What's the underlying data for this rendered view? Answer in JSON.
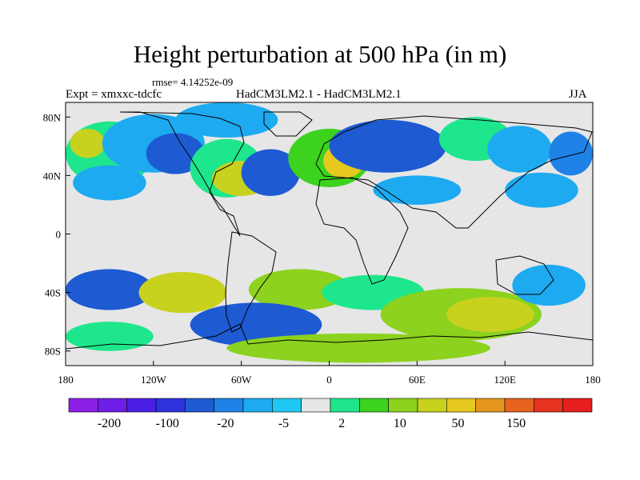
{
  "title": "Height perturbation at 500 hPa (in m)",
  "rmse_label": "rmse= 4.14252e-09",
  "expt_label": "Expt = xmxxc-tdcfc",
  "model_label": "HadCM3LM2.1 - HadCM3LM2.1",
  "season_label": "JJA",
  "x_ticks": [
    "180",
    "120W",
    "60W",
    "0",
    "60E",
    "120E",
    "180"
  ],
  "y_ticks": [
    "80N",
    "40N",
    "0",
    "40S",
    "80S"
  ],
  "colorbar": {
    "colors": [
      "#8c1ee6",
      "#6e1ee6",
      "#4b1ee6",
      "#2d32dc",
      "#1e5ad2",
      "#1e82e6",
      "#1eaaf0",
      "#1ec8f0",
      "#e6e6e6",
      "#1ee68c",
      "#3cd21e",
      "#8cd21e",
      "#c8d21e",
      "#e6c81e",
      "#e6961e",
      "#e6641e",
      "#e6321e",
      "#e61e1e"
    ],
    "labels": [
      "-200",
      "-100",
      "-20",
      "-5",
      "2",
      "10",
      "50",
      "150"
    ]
  },
  "map_data": {
    "projection": "cylindrical-equidistant",
    "lon_range": [
      -180,
      180
    ],
    "lat_range": [
      -90,
      90
    ],
    "background_color": "#e6e6e6",
    "blobs": [
      {
        "lon": -150,
        "lat": 55,
        "rx": 30,
        "ry": 22,
        "color": "#1ee68c"
      },
      {
        "lon": -165,
        "lat": 62,
        "rx": 12,
        "ry": 10,
        "color": "#c8d21e"
      },
      {
        "lon": -120,
        "lat": 62,
        "rx": 35,
        "ry": 20,
        "color": "#1eaaf0"
      },
      {
        "lon": -105,
        "lat": 55,
        "rx": 20,
        "ry": 14,
        "color": "#1e5ad2"
      },
      {
        "lon": -150,
        "lat": 35,
        "rx": 25,
        "ry": 12,
        "color": "#1eaaf0"
      },
      {
        "lon": -70,
        "lat": 45,
        "rx": 25,
        "ry": 20,
        "color": "#1ee68c"
      },
      {
        "lon": -60,
        "lat": 38,
        "rx": 20,
        "ry": 12,
        "color": "#c8d21e"
      },
      {
        "lon": -40,
        "lat": 42,
        "rx": 20,
        "ry": 16,
        "color": "#1e5ad2"
      },
      {
        "lon": -70,
        "lat": 78,
        "rx": 35,
        "ry": 12,
        "color": "#1eaaf0"
      },
      {
        "lon": 0,
        "lat": 52,
        "rx": 28,
        "ry": 20,
        "color": "#3cd21e"
      },
      {
        "lon": 10,
        "lat": 50,
        "rx": 14,
        "ry": 12,
        "color": "#e6c81e"
      },
      {
        "lon": 40,
        "lat": 60,
        "rx": 40,
        "ry": 18,
        "color": "#1e5ad2"
      },
      {
        "lon": 100,
        "lat": 65,
        "rx": 25,
        "ry": 15,
        "color": "#1ee68c"
      },
      {
        "lon": 130,
        "lat": 58,
        "rx": 22,
        "ry": 16,
        "color": "#1eaaf0"
      },
      {
        "lon": 165,
        "lat": 55,
        "rx": 15,
        "ry": 15,
        "color": "#1e82e6"
      },
      {
        "lon": 60,
        "lat": 30,
        "rx": 30,
        "ry": 10,
        "color": "#1eaaf0"
      },
      {
        "lon": 145,
        "lat": 30,
        "rx": 25,
        "ry": 12,
        "color": "#1eaaf0"
      },
      {
        "lon": -150,
        "lat": -38,
        "rx": 30,
        "ry": 14,
        "color": "#1e5ad2"
      },
      {
        "lon": -100,
        "lat": -40,
        "rx": 30,
        "ry": 14,
        "color": "#c8d21e"
      },
      {
        "lon": -20,
        "lat": -38,
        "rx": 35,
        "ry": 14,
        "color": "#8cd21e"
      },
      {
        "lon": -50,
        "lat": -62,
        "rx": 45,
        "ry": 15,
        "color": "#1e5ad2"
      },
      {
        "lon": 30,
        "lat": -40,
        "rx": 35,
        "ry": 12,
        "color": "#1ee68c"
      },
      {
        "lon": 90,
        "lat": -55,
        "rx": 55,
        "ry": 18,
        "color": "#8cd21e"
      },
      {
        "lon": 110,
        "lat": -55,
        "rx": 30,
        "ry": 12,
        "color": "#c8d21e"
      },
      {
        "lon": 150,
        "lat": -35,
        "rx": 25,
        "ry": 14,
        "color": "#1eaaf0"
      },
      {
        "lon": 20,
        "lat": -78,
        "rx": 90,
        "ry": 10,
        "color": "#8cd21e"
      },
      {
        "lon": -150,
        "lat": -70,
        "rx": 30,
        "ry": 10,
        "color": "#1ee68c"
      }
    ]
  }
}
